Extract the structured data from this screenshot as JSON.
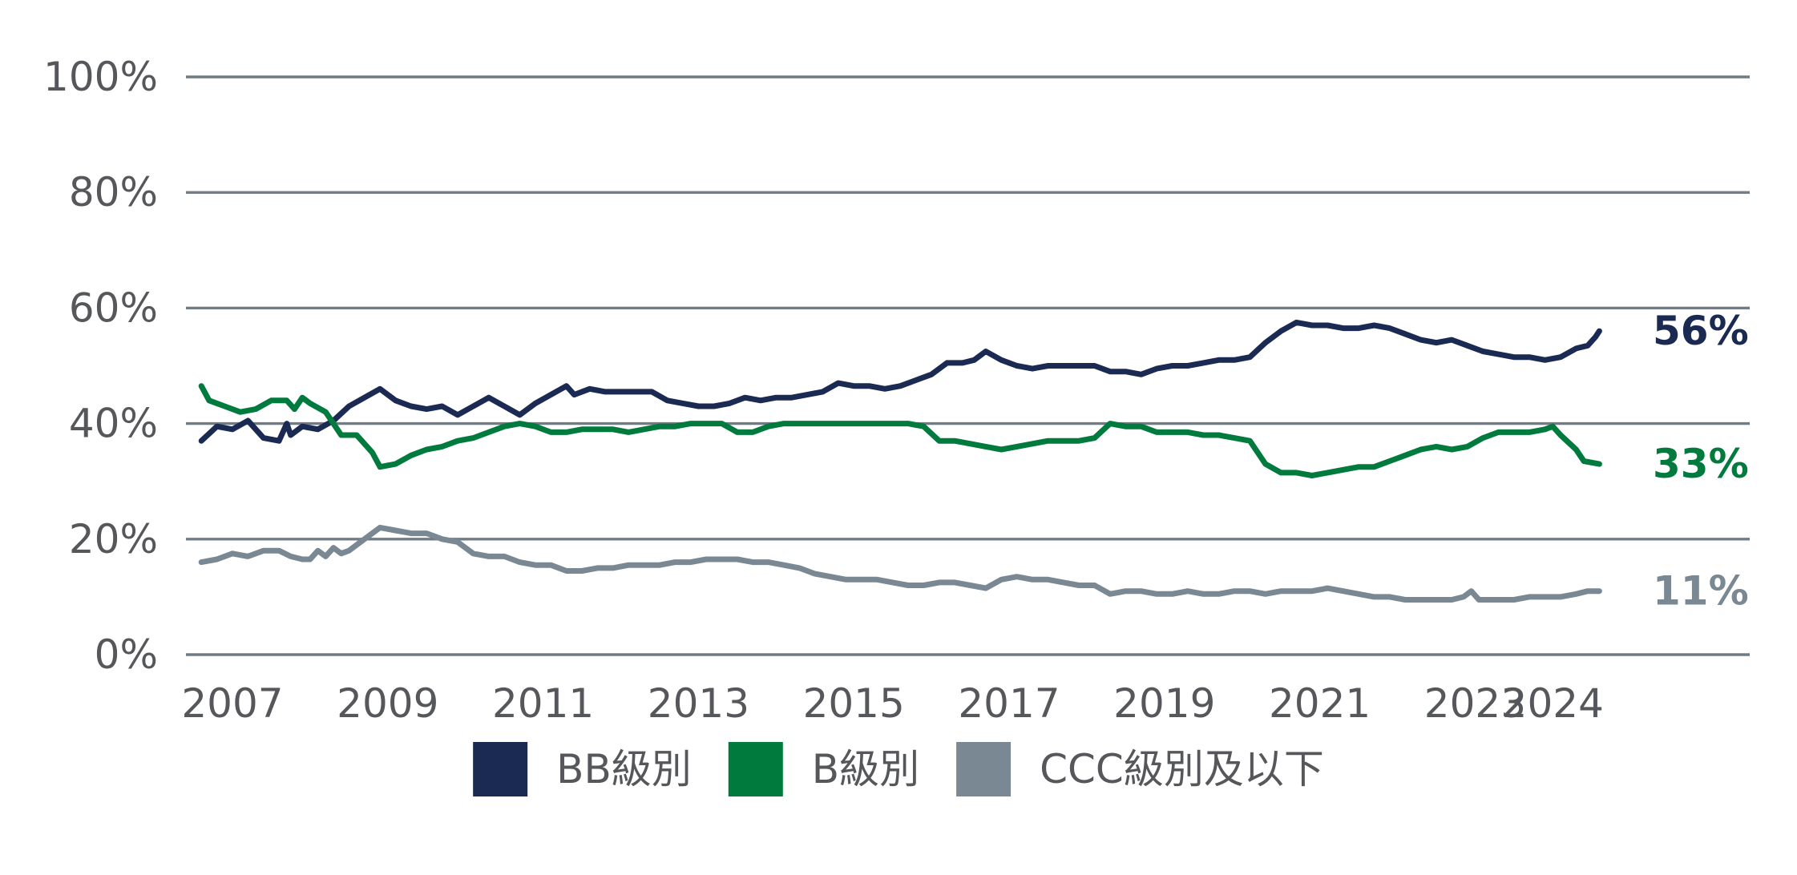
{
  "chart_data": {
    "type": "line",
    "title": "",
    "xlabel": "",
    "ylabel": "",
    "x_range": [
      2006.6,
      2024.6
    ],
    "ylim": [
      0,
      100
    ],
    "y_ticks": [
      0,
      20,
      40,
      60,
      80,
      100
    ],
    "y_tick_labels": [
      "0%",
      "20%",
      "40%",
      "60%",
      "80%",
      "100%"
    ],
    "x_ticks": [
      2007,
      2009,
      2011,
      2013,
      2015,
      2017,
      2019,
      2021,
      2023,
      2024
    ],
    "x_tick_labels": [
      "2007",
      "2009",
      "2011",
      "2013",
      "2015",
      "2017",
      "2019",
      "2021",
      "2023",
      "2024"
    ],
    "grid": true,
    "legend_position": "bottom",
    "series": [
      {
        "name": "BB級別",
        "color": "#1b2a52",
        "end_label": "56%",
        "points": [
          [
            2006.6,
            37
          ],
          [
            2006.8,
            39.5
          ],
          [
            2007.0,
            39
          ],
          [
            2007.2,
            40.5
          ],
          [
            2007.4,
            37.5
          ],
          [
            2007.6,
            37
          ],
          [
            2007.7,
            40
          ],
          [
            2007.75,
            38
          ],
          [
            2007.9,
            39.5
          ],
          [
            2008.1,
            39
          ],
          [
            2008.3,
            40.5
          ],
          [
            2008.5,
            43
          ],
          [
            2008.7,
            44.5
          ],
          [
            2008.9,
            46
          ],
          [
            2009.1,
            44
          ],
          [
            2009.3,
            43
          ],
          [
            2009.5,
            42.5
          ],
          [
            2009.7,
            43
          ],
          [
            2009.9,
            41.5
          ],
          [
            2010.1,
            43
          ],
          [
            2010.3,
            44.5
          ],
          [
            2010.5,
            43
          ],
          [
            2010.7,
            41.5
          ],
          [
            2010.9,
            43.5
          ],
          [
            2011.1,
            45
          ],
          [
            2011.3,
            46.5
          ],
          [
            2011.4,
            45
          ],
          [
            2011.6,
            46
          ],
          [
            2011.8,
            45.5
          ],
          [
            2012.0,
            45.5
          ],
          [
            2012.2,
            45.5
          ],
          [
            2012.4,
            45.5
          ],
          [
            2012.6,
            44
          ],
          [
            2012.8,
            43.5
          ],
          [
            2013.0,
            43
          ],
          [
            2013.2,
            43
          ],
          [
            2013.4,
            43.5
          ],
          [
            2013.6,
            44.5
          ],
          [
            2013.8,
            44
          ],
          [
            2014.0,
            44.5
          ],
          [
            2014.2,
            44.5
          ],
          [
            2014.4,
            45
          ],
          [
            2014.6,
            45.5
          ],
          [
            2014.8,
            47
          ],
          [
            2015.0,
            46.5
          ],
          [
            2015.2,
            46.5
          ],
          [
            2015.4,
            46
          ],
          [
            2015.6,
            46.5
          ],
          [
            2015.8,
            47.5
          ],
          [
            2016.0,
            48.5
          ],
          [
            2016.2,
            50.5
          ],
          [
            2016.4,
            50.5
          ],
          [
            2016.55,
            51
          ],
          [
            2016.7,
            52.5
          ],
          [
            2016.9,
            51
          ],
          [
            2017.1,
            50
          ],
          [
            2017.3,
            49.5
          ],
          [
            2017.5,
            50
          ],
          [
            2017.7,
            50
          ],
          [
            2017.9,
            50
          ],
          [
            2018.1,
            50
          ],
          [
            2018.3,
            49
          ],
          [
            2018.5,
            49
          ],
          [
            2018.7,
            48.5
          ],
          [
            2018.9,
            49.5
          ],
          [
            2019.1,
            50
          ],
          [
            2019.3,
            50
          ],
          [
            2019.5,
            50.5
          ],
          [
            2019.7,
            51
          ],
          [
            2019.9,
            51
          ],
          [
            2020.1,
            51.5
          ],
          [
            2020.3,
            54
          ],
          [
            2020.5,
            56
          ],
          [
            2020.7,
            57.5
          ],
          [
            2020.9,
            57
          ],
          [
            2021.1,
            57
          ],
          [
            2021.3,
            56.5
          ],
          [
            2021.5,
            56.5
          ],
          [
            2021.7,
            57
          ],
          [
            2021.9,
            56.5
          ],
          [
            2022.1,
            55.5
          ],
          [
            2022.3,
            54.5
          ],
          [
            2022.5,
            54
          ],
          [
            2022.7,
            54.5
          ],
          [
            2022.9,
            53.5
          ],
          [
            2023.1,
            52.5
          ],
          [
            2023.3,
            52
          ],
          [
            2023.5,
            51.5
          ],
          [
            2023.7,
            51.5
          ],
          [
            2023.9,
            51
          ],
          [
            2024.1,
            51.5
          ],
          [
            2024.3,
            53
          ],
          [
            2024.45,
            53.5
          ],
          [
            2024.55,
            55
          ],
          [
            2024.6,
            56
          ]
        ]
      },
      {
        "name": "B級別",
        "color": "#007a3d",
        "end_label": "33%",
        "points": [
          [
            2006.6,
            46.5
          ],
          [
            2006.7,
            44
          ],
          [
            2006.9,
            43
          ],
          [
            2007.1,
            42
          ],
          [
            2007.3,
            42.5
          ],
          [
            2007.5,
            44
          ],
          [
            2007.7,
            44
          ],
          [
            2007.8,
            42.5
          ],
          [
            2007.9,
            44.5
          ],
          [
            2008.0,
            43.5
          ],
          [
            2008.2,
            42
          ],
          [
            2008.4,
            38
          ],
          [
            2008.6,
            38
          ],
          [
            2008.8,
            35
          ],
          [
            2008.9,
            32.5
          ],
          [
            2009.1,
            33
          ],
          [
            2009.3,
            34.5
          ],
          [
            2009.5,
            35.5
          ],
          [
            2009.7,
            36
          ],
          [
            2009.9,
            37
          ],
          [
            2010.1,
            37.5
          ],
          [
            2010.3,
            38.5
          ],
          [
            2010.5,
            39.5
          ],
          [
            2010.7,
            40
          ],
          [
            2010.9,
            39.5
          ],
          [
            2011.1,
            38.5
          ],
          [
            2011.3,
            38.5
          ],
          [
            2011.5,
            39
          ],
          [
            2011.7,
            39
          ],
          [
            2011.9,
            39
          ],
          [
            2012.1,
            38.5
          ],
          [
            2012.3,
            39
          ],
          [
            2012.5,
            39.5
          ],
          [
            2012.7,
            39.5
          ],
          [
            2012.9,
            40
          ],
          [
            2013.1,
            40
          ],
          [
            2013.3,
            40
          ],
          [
            2013.5,
            38.5
          ],
          [
            2013.7,
            38.5
          ],
          [
            2013.9,
            39.5
          ],
          [
            2014.1,
            40
          ],
          [
            2014.3,
            40
          ],
          [
            2014.5,
            40
          ],
          [
            2014.7,
            40
          ],
          [
            2014.9,
            40
          ],
          [
            2015.1,
            40
          ],
          [
            2015.3,
            40
          ],
          [
            2015.5,
            40
          ],
          [
            2015.7,
            40
          ],
          [
            2015.9,
            39.5
          ],
          [
            2016.1,
            37
          ],
          [
            2016.3,
            37
          ],
          [
            2016.5,
            36.5
          ],
          [
            2016.7,
            36
          ],
          [
            2016.9,
            35.5
          ],
          [
            2017.1,
            36
          ],
          [
            2017.3,
            36.5
          ],
          [
            2017.5,
            37
          ],
          [
            2017.7,
            37
          ],
          [
            2017.9,
            37
          ],
          [
            2018.1,
            37.5
          ],
          [
            2018.3,
            40
          ],
          [
            2018.5,
            39.5
          ],
          [
            2018.7,
            39.5
          ],
          [
            2018.9,
            38.5
          ],
          [
            2019.1,
            38.5
          ],
          [
            2019.3,
            38.5
          ],
          [
            2019.5,
            38
          ],
          [
            2019.7,
            38
          ],
          [
            2019.9,
            37.5
          ],
          [
            2020.1,
            37
          ],
          [
            2020.3,
            33
          ],
          [
            2020.5,
            31.5
          ],
          [
            2020.7,
            31.5
          ],
          [
            2020.9,
            31
          ],
          [
            2021.1,
            31.5
          ],
          [
            2021.3,
            32
          ],
          [
            2021.5,
            32.5
          ],
          [
            2021.7,
            32.5
          ],
          [
            2021.9,
            33.5
          ],
          [
            2022.1,
            34.5
          ],
          [
            2022.3,
            35.5
          ],
          [
            2022.5,
            36
          ],
          [
            2022.7,
            35.5
          ],
          [
            2022.9,
            36
          ],
          [
            2023.1,
            37.5
          ],
          [
            2023.3,
            38.5
          ],
          [
            2023.5,
            38.5
          ],
          [
            2023.7,
            38.5
          ],
          [
            2023.9,
            39
          ],
          [
            2024.0,
            39.5
          ],
          [
            2024.1,
            38
          ],
          [
            2024.3,
            35.5
          ],
          [
            2024.4,
            33.5
          ],
          [
            2024.6,
            33
          ]
        ]
      },
      {
        "name": "CCC級別及以下",
        "color": "#7a8894",
        "end_label": "11%",
        "points": [
          [
            2006.6,
            16
          ],
          [
            2006.8,
            16.5
          ],
          [
            2007.0,
            17.5
          ],
          [
            2007.2,
            17
          ],
          [
            2007.4,
            18
          ],
          [
            2007.6,
            18
          ],
          [
            2007.75,
            17
          ],
          [
            2007.9,
            16.5
          ],
          [
            2008.0,
            16.5
          ],
          [
            2008.1,
            18
          ],
          [
            2008.2,
            17
          ],
          [
            2008.3,
            18.5
          ],
          [
            2008.4,
            17.5
          ],
          [
            2008.5,
            18
          ],
          [
            2008.7,
            20
          ],
          [
            2008.9,
            22
          ],
          [
            2009.1,
            21.5
          ],
          [
            2009.3,
            21
          ],
          [
            2009.5,
            21
          ],
          [
            2009.7,
            20
          ],
          [
            2009.9,
            19.5
          ],
          [
            2010.1,
            17.5
          ],
          [
            2010.3,
            17
          ],
          [
            2010.5,
            17
          ],
          [
            2010.7,
            16
          ],
          [
            2010.9,
            15.5
          ],
          [
            2011.1,
            15.5
          ],
          [
            2011.3,
            14.5
          ],
          [
            2011.5,
            14.5
          ],
          [
            2011.7,
            15
          ],
          [
            2011.9,
            15
          ],
          [
            2012.1,
            15.5
          ],
          [
            2012.3,
            15.5
          ],
          [
            2012.5,
            15.5
          ],
          [
            2012.7,
            16
          ],
          [
            2012.9,
            16
          ],
          [
            2013.1,
            16.5
          ],
          [
            2013.3,
            16.5
          ],
          [
            2013.5,
            16.5
          ],
          [
            2013.7,
            16
          ],
          [
            2013.9,
            16
          ],
          [
            2014.1,
            15.5
          ],
          [
            2014.3,
            15
          ],
          [
            2014.5,
            14
          ],
          [
            2014.7,
            13.5
          ],
          [
            2014.9,
            13
          ],
          [
            2015.1,
            13
          ],
          [
            2015.3,
            13
          ],
          [
            2015.5,
            12.5
          ],
          [
            2015.7,
            12
          ],
          [
            2015.9,
            12
          ],
          [
            2016.1,
            12.5
          ],
          [
            2016.3,
            12.5
          ],
          [
            2016.5,
            12
          ],
          [
            2016.7,
            11.5
          ],
          [
            2016.9,
            13
          ],
          [
            2017.1,
            13.5
          ],
          [
            2017.3,
            13
          ],
          [
            2017.5,
            13
          ],
          [
            2017.7,
            12.5
          ],
          [
            2017.9,
            12
          ],
          [
            2018.1,
            12
          ],
          [
            2018.3,
            10.5
          ],
          [
            2018.5,
            11
          ],
          [
            2018.7,
            11
          ],
          [
            2018.9,
            10.5
          ],
          [
            2019.1,
            10.5
          ],
          [
            2019.3,
            11
          ],
          [
            2019.5,
            10.5
          ],
          [
            2019.7,
            10.5
          ],
          [
            2019.9,
            11
          ],
          [
            2020.1,
            11
          ],
          [
            2020.3,
            10.5
          ],
          [
            2020.5,
            11
          ],
          [
            2020.7,
            11
          ],
          [
            2020.9,
            11
          ],
          [
            2021.1,
            11.5
          ],
          [
            2021.3,
            11
          ],
          [
            2021.5,
            10.5
          ],
          [
            2021.7,
            10
          ],
          [
            2021.9,
            10
          ],
          [
            2022.1,
            9.5
          ],
          [
            2022.3,
            9.5
          ],
          [
            2022.5,
            9.5
          ],
          [
            2022.7,
            9.5
          ],
          [
            2022.85,
            10
          ],
          [
            2022.95,
            11
          ],
          [
            2023.05,
            9.5
          ],
          [
            2023.3,
            9.5
          ],
          [
            2023.5,
            9.5
          ],
          [
            2023.7,
            10
          ],
          [
            2023.9,
            10
          ],
          [
            2024.1,
            10
          ],
          [
            2024.3,
            10.5
          ],
          [
            2024.45,
            11
          ],
          [
            2024.6,
            11
          ]
        ]
      }
    ]
  }
}
